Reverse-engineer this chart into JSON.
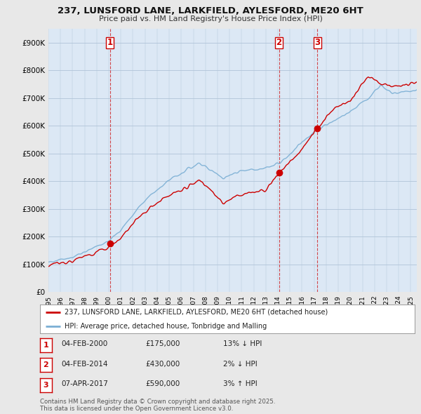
{
  "title1": "237, LUNSFORD LANE, LARKFIELD, AYLESFORD, ME20 6HT",
  "title2": "Price paid vs. HM Land Registry's House Price Index (HPI)",
  "background_color": "#e8e8e8",
  "plot_bg_color": "#dce8f5",
  "ylim": [
    0,
    950000
  ],
  "yticks": [
    0,
    100000,
    200000,
    300000,
    400000,
    500000,
    600000,
    700000,
    800000,
    900000
  ],
  "ytick_labels": [
    "£0",
    "£100K",
    "£200K",
    "£300K",
    "£400K",
    "£500K",
    "£600K",
    "£700K",
    "£800K",
    "£900K"
  ],
  "xlim_start": 1995.0,
  "xlim_end": 2025.5,
  "sale_dates": [
    2000.09,
    2014.09,
    2017.27
  ],
  "sale_prices": [
    175000,
    430000,
    590000
  ],
  "sale_labels": [
    "1",
    "2",
    "3"
  ],
  "red_line_color": "#cc0000",
  "blue_line_color": "#7bafd4",
  "vline_color": "#cc0000",
  "legend_label_red": "237, LUNSFORD LANE, LARKFIELD, AYLESFORD, ME20 6HT (detached house)",
  "legend_label_blue": "HPI: Average price, detached house, Tonbridge and Malling",
  "table_rows": [
    {
      "num": "1",
      "date": "04-FEB-2000",
      "price": "£175,000",
      "pct": "13%",
      "dir": "↓",
      "ref": "HPI"
    },
    {
      "num": "2",
      "date": "04-FEB-2014",
      "price": "£430,000",
      "pct": "2%",
      "dir": "↓",
      "ref": "HPI"
    },
    {
      "num": "3",
      "date": "07-APR-2017",
      "price": "£590,000",
      "pct": "3%",
      "dir": "↑",
      "ref": "HPI"
    }
  ],
  "footnote": "Contains HM Land Registry data © Crown copyright and database right 2025.\nThis data is licensed under the Open Government Licence v3.0.",
  "xtick_years": [
    1995,
    1996,
    1997,
    1998,
    1999,
    2000,
    2001,
    2002,
    2003,
    2004,
    2005,
    2006,
    2007,
    2008,
    2009,
    2010,
    2011,
    2012,
    2013,
    2014,
    2015,
    2016,
    2017,
    2018,
    2019,
    2020,
    2021,
    2022,
    2023,
    2024,
    2025
  ]
}
